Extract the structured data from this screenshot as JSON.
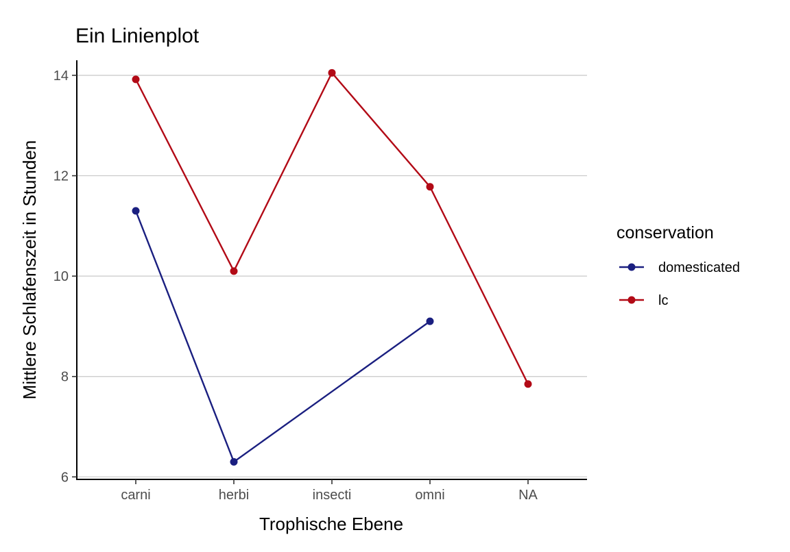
{
  "chart_data": {
    "type": "line",
    "title": "Ein Linienplot",
    "xlabel": "Trophische Ebene",
    "ylabel": "Mittlere Schlafenszeit in Stunden",
    "categories": [
      "carni",
      "herbi",
      "insecti",
      "omni",
      "NA"
    ],
    "ylim": [
      5.95,
      14.3
    ],
    "yticks": [
      6,
      8,
      10,
      12,
      14
    ],
    "grid": "horizontal-major",
    "legend": {
      "title": "conservation",
      "position": "right"
    },
    "series": [
      {
        "name": "domesticated",
        "color": "#1a1f80",
        "values": [
          11.3,
          6.3,
          null,
          9.1,
          null
        ]
      },
      {
        "name": "lc",
        "color": "#b20a16",
        "values": [
          13.92,
          10.1,
          14.05,
          11.78,
          7.85
        ]
      }
    ]
  }
}
